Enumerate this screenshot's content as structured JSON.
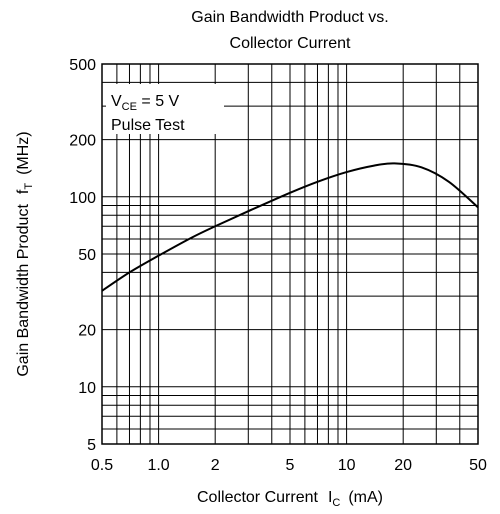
{
  "chart_data": {
    "type": "line",
    "title_line1": "Gain Bandwidth Product vs.",
    "title_line2": "Collector Current",
    "xlabel": "Collector Current",
    "xlabel_symbol": "I",
    "xlabel_sub": "C",
    "xlabel_unit": "(mA)",
    "ylabel": "Gain Bandwidth Product",
    "ylabel_symbol": "f",
    "ylabel_sub": "T",
    "ylabel_unit": "(MHz)",
    "x_scale": "log",
    "y_scale": "log",
    "xlim": [
      0.5,
      50
    ],
    "ylim": [
      5,
      500
    ],
    "grid": true,
    "xticks": [
      {
        "value": 0.5,
        "label": "0.5"
      },
      {
        "value": 1,
        "label": "1.0"
      },
      {
        "value": 2,
        "label": "2"
      },
      {
        "value": 5,
        "label": "5"
      },
      {
        "value": 10,
        "label": "10"
      },
      {
        "value": 20,
        "label": "20"
      },
      {
        "value": 50,
        "label": "50"
      }
    ],
    "yticks": [
      {
        "value": 5,
        "label": "5"
      },
      {
        "value": 10,
        "label": "10"
      },
      {
        "value": 20,
        "label": "20"
      },
      {
        "value": 50,
        "label": "50"
      },
      {
        "value": 100,
        "label": "100"
      },
      {
        "value": 200,
        "label": "200"
      },
      {
        "value": 500,
        "label": "500"
      }
    ],
    "annotation": {
      "condition_symbol": "V",
      "condition_sub": "CE",
      "condition_value": " = 5 V",
      "test": "Pulse Test",
      "position": "top-left"
    },
    "series": [
      {
        "x": [
          0.5,
          0.7,
          1.0,
          1.5,
          2.0,
          3.0,
          5.0,
          7.0,
          10,
          14,
          18,
          25,
          35,
          50
        ],
        "y": [
          32,
          40,
          49,
          61,
          70,
          84,
          105,
          120,
          135,
          146,
          150,
          143,
          120,
          88
        ]
      }
    ],
    "colors": {
      "line": "#000000",
      "grid": "#000000",
      "background": "#ffffff"
    }
  }
}
